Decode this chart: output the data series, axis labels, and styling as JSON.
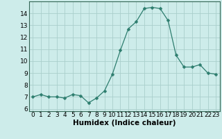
{
  "x": [
    0,
    1,
    2,
    3,
    4,
    5,
    6,
    7,
    8,
    9,
    10,
    11,
    12,
    13,
    14,
    15,
    16,
    17,
    18,
    19,
    20,
    21,
    22,
    23
  ],
  "y": [
    7.0,
    7.2,
    7.0,
    7.0,
    6.9,
    7.2,
    7.1,
    6.5,
    6.9,
    7.5,
    8.9,
    10.9,
    12.7,
    13.3,
    14.4,
    14.5,
    14.4,
    13.4,
    10.5,
    9.5,
    9.5,
    9.7,
    9.0,
    8.9
  ],
  "line_color": "#2d7d6e",
  "marker": "D",
  "marker_size": 2.5,
  "bg_color": "#cdecea",
  "grid_color": "#aacfcc",
  "xlabel": "Humidex (Indice chaleur)",
  "xlim": [
    -0.5,
    23.5
  ],
  "ylim": [
    5.8,
    15.0
  ],
  "yticks": [
    6,
    7,
    8,
    9,
    10,
    11,
    12,
    13,
    14
  ],
  "xticks": [
    0,
    1,
    2,
    3,
    4,
    5,
    6,
    7,
    8,
    9,
    10,
    11,
    12,
    13,
    14,
    15,
    16,
    17,
    18,
    19,
    20,
    21,
    22,
    23
  ],
  "tick_fontsize": 6.5,
  "xlabel_fontsize": 7.5,
  "spine_color": "#336655"
}
